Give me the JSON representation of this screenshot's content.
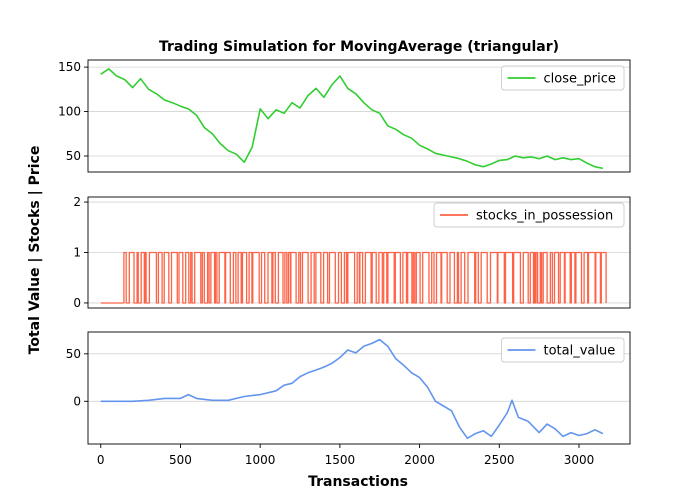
{
  "chart_data": {
    "title": "Trading Simulation for MovingAverage (triangular)",
    "xlabel": "Transactions",
    "ylabel": "Total Value | Stocks | Price",
    "xlim": [
      -80,
      3320
    ],
    "xticks": [
      0,
      500,
      1000,
      1500,
      2000,
      2500,
      3000
    ],
    "grid": "horizontal",
    "panels": [
      {
        "type": "line",
        "series": [
          {
            "name": "close_price",
            "color": "#32cd32",
            "x": [
              0,
              50,
              100,
              150,
              200,
              250,
              300,
              350,
              400,
              450,
              500,
              550,
              600,
              650,
              700,
              750,
              800,
              850,
              900,
              950,
              1000,
              1050,
              1100,
              1150,
              1200,
              1250,
              1300,
              1350,
              1400,
              1450,
              1500,
              1550,
              1600,
              1650,
              1700,
              1750,
              1800,
              1850,
              1900,
              1950,
              2000,
              2050,
              2100,
              2150,
              2200,
              2250,
              2300,
              2350,
              2400,
              2450,
              2500,
              2550,
              2600,
              2650,
              2700,
              2750,
              2800,
              2850,
              2900,
              2950,
              3000,
              3050,
              3100,
              3150
            ],
            "y": [
              142,
              148,
              140,
              136,
              127,
              137,
              125,
              120,
              113,
              110,
              106,
              103,
              96,
              82,
              75,
              64,
              56,
              52,
              43,
              60,
              103,
              92,
              102,
              98,
              110,
              104,
              118,
              126,
              116,
              130,
              140,
              126,
              120,
              110,
              102,
              98,
              84,
              80,
              74,
              70,
              62,
              58,
              53,
              51,
              49,
              47,
              44,
              40,
              38,
              41,
              45,
              46,
              50,
              48,
              49,
              47,
              50,
              46,
              48,
              46,
              47,
              42,
              38,
              36
            ]
          }
        ],
        "legend": "upper right",
        "ylim": [
          32,
          158
        ],
        "yticks": [
          50,
          100,
          150
        ]
      },
      {
        "type": "line",
        "step": true,
        "series": [
          {
            "name": "stocks_in_possession",
            "color": "#ff6347",
            "spike": {
              "x": 730,
              "y": 2
            },
            "active_start": 145,
            "active_end": 3170,
            "toggle_seed": 7
          }
        ],
        "legend": "upper right",
        "ylim": [
          -0.1,
          2.1
        ],
        "yticks": [
          0,
          1,
          2
        ]
      },
      {
        "type": "line",
        "series": [
          {
            "name": "total_value",
            "color": "#6495ed",
            "x": [
              0,
              100,
              200,
              300,
              400,
              500,
              550,
              600,
              700,
              800,
              900,
              1000,
              1100,
              1150,
              1200,
              1250,
              1300,
              1350,
              1400,
              1450,
              1500,
              1550,
              1600,
              1650,
              1700,
              1750,
              1800,
              1850,
              1900,
              1950,
              2000,
              2050,
              2100,
              2150,
              2200,
              2250,
              2300,
              2350,
              2400,
              2450,
              2500,
              2550,
              2580,
              2620,
              2680,
              2750,
              2800,
              2850,
              2900,
              2950,
              3000,
              3050,
              3100,
              3150
            ],
            "y": [
              0,
              0,
              0,
              1,
              3,
              3,
              7,
              3,
              1,
              1,
              5,
              7,
              11,
              17,
              19,
              26,
              30,
              33,
              36,
              40,
              46,
              54,
              51,
              58,
              61,
              65,
              58,
              45,
              38,
              30,
              25,
              15,
              0,
              -5,
              -10,
              -27,
              -39,
              -34,
              -31,
              -37,
              -25,
              -12,
              1,
              -17,
              -21,
              -33,
              -24,
              -29,
              -37,
              -33,
              -36,
              -34,
              -30,
              -34
            ]
          }
        ],
        "legend": "upper right",
        "ylim": [
          -45,
          73
        ],
        "yticks": [
          0,
          50
        ]
      }
    ]
  }
}
